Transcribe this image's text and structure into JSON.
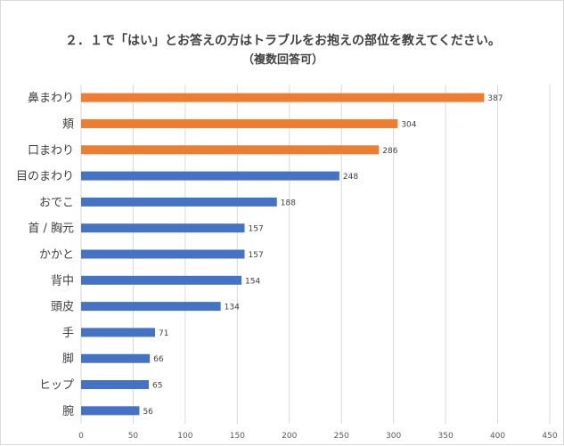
{
  "chart_data": {
    "type": "bar",
    "orientation": "horizontal",
    "title": "２．１で「はい」とお答えの方はトラブルをお抱えの部位を教えてください。",
    "subtitle": "（複数回答可）",
    "categories": [
      "鼻まわり",
      "頬",
      "口まわり",
      "目のまわり",
      "おでこ",
      "首 / 胸元",
      "かかと",
      "背中",
      "頭皮",
      "手",
      "脚",
      "ヒップ",
      "腕"
    ],
    "values": [
      387,
      304,
      286,
      248,
      188,
      157,
      157,
      154,
      134,
      71,
      66,
      65,
      56
    ],
    "bar_colors": [
      "#ED7D31",
      "#ED7D31",
      "#ED7D31",
      "#4472C4",
      "#4472C4",
      "#4472C4",
      "#4472C4",
      "#4472C4",
      "#4472C4",
      "#4472C4",
      "#4472C4",
      "#4472C4",
      "#4472C4"
    ],
    "xlim": [
      0,
      450
    ],
    "xticks": [
      0,
      50,
      100,
      150,
      200,
      250,
      300,
      350,
      400,
      450
    ],
    "grid": "vertical",
    "grid_color": "#d9d9d9"
  }
}
